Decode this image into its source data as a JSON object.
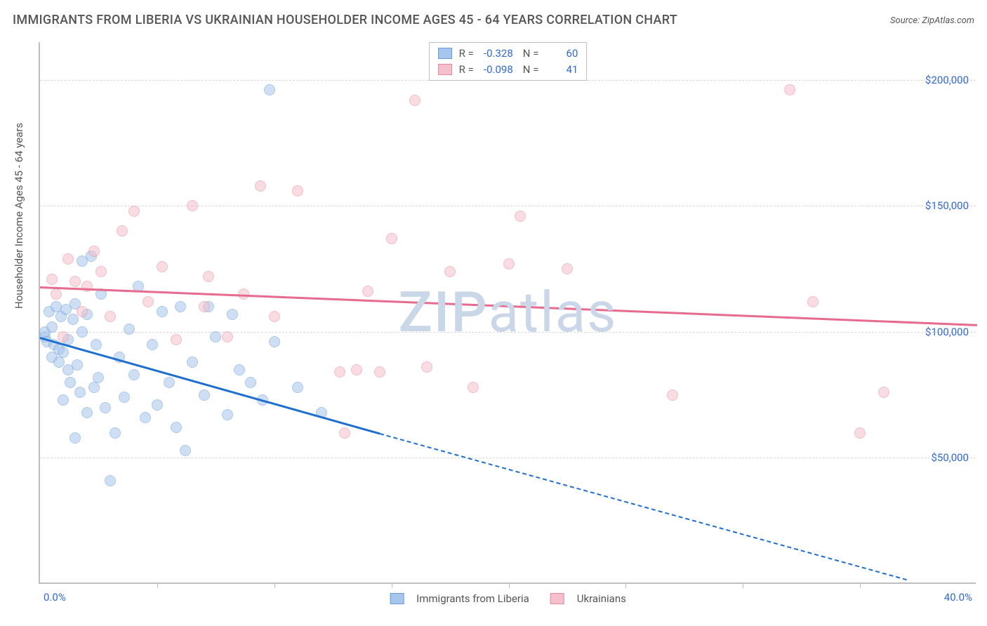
{
  "title": "IMMIGRANTS FROM LIBERIA VS UKRAINIAN HOUSEHOLDER INCOME AGES 45 - 64 YEARS CORRELATION CHART",
  "source": "Source: ZipAtlas.com",
  "y_axis_title": "Householder Income Ages 45 - 64 years",
  "watermark": "ZIPatlas",
  "chart": {
    "type": "scatter",
    "xlim": [
      0,
      40
    ],
    "ylim": [
      0,
      215000
    ],
    "x_tick_step": 5,
    "x_min_label": "0.0%",
    "x_max_label": "40.0%",
    "y_ticks": [
      50000,
      100000,
      150000,
      200000
    ],
    "y_tick_labels": [
      "$50,000",
      "$100,000",
      "$150,000",
      "$200,000"
    ],
    "grid_color": "#d9d9d9",
    "axis_color": "#bfbfbf",
    "background_color": "#ffffff",
    "marker_radius": 8,
    "marker_opacity": 0.55,
    "series": [
      {
        "name": "Immigrants from Liberia",
        "fill": "#a7c6ec",
        "stroke": "#6a9bd8",
        "line_color": "#1f6fd1",
        "R": "-0.328",
        "N": "60",
        "trend": {
          "x1": 0,
          "y1": 98000,
          "x2": 14.5,
          "y2": 60000,
          "x2_dash": 37,
          "y2_dash": 2000
        },
        "points": [
          [
            0.2,
            98000
          ],
          [
            0.2,
            100000
          ],
          [
            0.3,
            96000
          ],
          [
            0.4,
            108000
          ],
          [
            0.5,
            90000
          ],
          [
            0.5,
            102000
          ],
          [
            0.6,
            95000
          ],
          [
            0.7,
            110000
          ],
          [
            0.8,
            88000
          ],
          [
            0.8,
            93000
          ],
          [
            0.9,
            106000
          ],
          [
            1.0,
            73000
          ],
          [
            1.0,
            92000
          ],
          [
            1.1,
            109000
          ],
          [
            1.2,
            85000
          ],
          [
            1.2,
            97000
          ],
          [
            1.3,
            80000
          ],
          [
            1.4,
            105000
          ],
          [
            1.5,
            58000
          ],
          [
            1.5,
            111000
          ],
          [
            1.6,
            87000
          ],
          [
            1.7,
            76000
          ],
          [
            1.8,
            100000
          ],
          [
            1.8,
            128000
          ],
          [
            2.0,
            68000
          ],
          [
            2.0,
            107000
          ],
          [
            2.2,
            130000
          ],
          [
            2.3,
            78000
          ],
          [
            2.4,
            95000
          ],
          [
            2.5,
            82000
          ],
          [
            2.6,
            115000
          ],
          [
            2.8,
            70000
          ],
          [
            3.0,
            41000
          ],
          [
            3.2,
            60000
          ],
          [
            3.4,
            90000
          ],
          [
            3.6,
            74000
          ],
          [
            3.8,
            101000
          ],
          [
            4.0,
            83000
          ],
          [
            4.2,
            118000
          ],
          [
            4.5,
            66000
          ],
          [
            4.8,
            95000
          ],
          [
            5.0,
            71000
          ],
          [
            5.2,
            108000
          ],
          [
            5.5,
            80000
          ],
          [
            5.8,
            62000
          ],
          [
            6.0,
            110000
          ],
          [
            6.2,
            53000
          ],
          [
            6.5,
            88000
          ],
          [
            7.0,
            75000
          ],
          [
            7.2,
            110000
          ],
          [
            7.5,
            98000
          ],
          [
            8.0,
            67000
          ],
          [
            8.2,
            107000
          ],
          [
            8.5,
            85000
          ],
          [
            9.0,
            80000
          ],
          [
            9.5,
            73000
          ],
          [
            10.0,
            96000
          ],
          [
            9.8,
            196000
          ],
          [
            11.0,
            78000
          ],
          [
            12.0,
            68000
          ]
        ]
      },
      {
        "name": "Ukrainians",
        "fill": "#f3c0cb",
        "stroke": "#e48aa0",
        "line_color": "#e76a8f",
        "R": "-0.098",
        "N": "41",
        "trend": {
          "x1": 0,
          "y1": 118000,
          "x2": 40,
          "y2": 103000
        },
        "points": [
          [
            0.5,
            121000
          ],
          [
            0.7,
            115000
          ],
          [
            1.0,
            98000
          ],
          [
            1.2,
            129000
          ],
          [
            1.5,
            120000
          ],
          [
            1.8,
            108000
          ],
          [
            2.0,
            118000
          ],
          [
            2.3,
            132000
          ],
          [
            2.6,
            124000
          ],
          [
            3.0,
            106000
          ],
          [
            3.5,
            140000
          ],
          [
            4.0,
            148000
          ],
          [
            4.6,
            112000
          ],
          [
            5.2,
            126000
          ],
          [
            5.8,
            97000
          ],
          [
            6.5,
            150000
          ],
          [
            7.0,
            110000
          ],
          [
            7.2,
            122000
          ],
          [
            8.0,
            98000
          ],
          [
            8.7,
            115000
          ],
          [
            9.4,
            158000
          ],
          [
            10.0,
            106000
          ],
          [
            11.0,
            156000
          ],
          [
            12.8,
            84000
          ],
          [
            13.0,
            60000
          ],
          [
            13.5,
            85000
          ],
          [
            14.0,
            116000
          ],
          [
            14.5,
            84000
          ],
          [
            15.0,
            137000
          ],
          [
            16.0,
            192000
          ],
          [
            16.5,
            86000
          ],
          [
            17.5,
            124000
          ],
          [
            18.5,
            78000
          ],
          [
            20.0,
            127000
          ],
          [
            20.5,
            146000
          ],
          [
            22.5,
            125000
          ],
          [
            27.0,
            75000
          ],
          [
            32.0,
            196000
          ],
          [
            33.0,
            112000
          ],
          [
            35.0,
            60000
          ],
          [
            36.0,
            76000
          ]
        ]
      }
    ]
  },
  "legend_top": {
    "r_label": "R =",
    "n_label": "N ="
  },
  "watermark_color": "#c9d7e8"
}
